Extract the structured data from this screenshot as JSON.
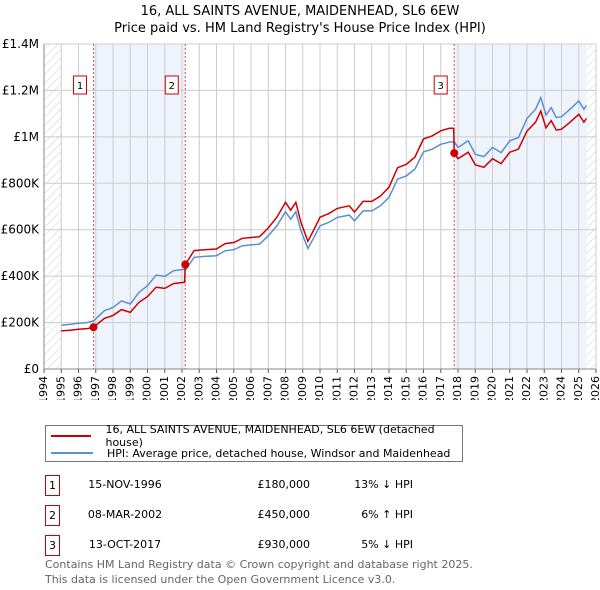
{
  "title": "16, ALL SAINTS AVENUE, MAIDENHEAD, SL6 6EW",
  "subtitle": "Price paid vs. HM Land Registry's House Price Index (HPI)",
  "chart_data": {
    "type": "line",
    "xlim": [
      1994,
      2026
    ],
    "ylim": [
      0,
      1400000
    ],
    "x_ticks": [
      1994,
      1995,
      1996,
      1997,
      1998,
      1999,
      2000,
      2001,
      2002,
      2003,
      2004,
      2005,
      2006,
      2007,
      2008,
      2009,
      2010,
      2011,
      2012,
      2013,
      2014,
      2015,
      2016,
      2017,
      2018,
      2019,
      2020,
      2021,
      2022,
      2023,
      2024,
      2025,
      2026
    ],
    "y_ticks": [
      {
        "v": 0,
        "label": "£0"
      },
      {
        "v": 200000,
        "label": "£200K"
      },
      {
        "v": 400000,
        "label": "£400K"
      },
      {
        "v": 600000,
        "label": "£600K"
      },
      {
        "v": 800000,
        "label": "£800K"
      },
      {
        "v": 1000000,
        "label": "£1M"
      },
      {
        "v": 1200000,
        "label": "£1.2M"
      },
      {
        "v": 1400000,
        "label": "£1.4M"
      }
    ],
    "grid": true,
    "colors": {
      "property": "#cc0000",
      "hpi": "#5b8fd0",
      "shade": "#eef3fc"
    },
    "data_range": [
      1995,
      2025.45
    ],
    "series": [
      {
        "name": "16, ALL SAINTS AVENUE, MAIDENHEAD, SL6 6EW (detached house)",
        "color": "#cc0000",
        "x": [
          1995.0,
          1995.5,
          1996.0,
          1996.5,
          1996.87,
          1997.5,
          1998.0,
          1998.5,
          1999.0,
          1999.5,
          2000.0,
          2000.5,
          2001.0,
          2001.5,
          2002.15,
          2002.19,
          2002.7,
          2003.3,
          2004.0,
          2004.5,
          2005.0,
          2005.5,
          2006.5,
          2007.0,
          2007.5,
          2008.0,
          2008.3,
          2008.6,
          2008.9,
          2009.3,
          2009.7,
          2010.0,
          2010.5,
          2011.0,
          2011.7,
          2012.0,
          2012.5,
          2013.0,
          2013.5,
          2014.0,
          2014.5,
          2015.0,
          2015.5,
          2016.0,
          2016.5,
          2017.0,
          2017.5,
          2017.75,
          2017.78,
          2018.0,
          2018.6,
          2019.0,
          2019.5,
          2020.0,
          2020.5,
          2021.0,
          2021.5,
          2022.0,
          2022.5,
          2022.8,
          2023.1,
          2023.4,
          2023.7,
          2024.0,
          2024.5,
          2025.0,
          2025.3,
          2025.45
        ],
        "y": [
          164000,
          167000,
          171000,
          174000,
          180000,
          218000,
          231000,
          256000,
          244000,
          287000,
          312000,
          352000,
          347000,
          368000,
          374000,
          450000,
          510000,
          514000,
          517000,
          540000,
          545000,
          563000,
          570000,
          608000,
          654000,
          718000,
          684000,
          718000,
          631000,
          550000,
          608000,
          654000,
          669000,
          692000,
          703000,
          676000,
          722000,
          722000,
          745000,
          783000,
          867000,
          882000,
          913000,
          991000,
          1004000,
          1026000,
          1037000,
          1037000,
          930000,
          906000,
          934000,
          879000,
          869000,
          906000,
          885000,
          934000,
          947000,
          1025000,
          1063000,
          1111000,
          1039000,
          1070000,
          1029000,
          1033000,
          1063000,
          1097000,
          1063000,
          1079000
        ]
      },
      {
        "name": "HPI: Average price, detached house, Windsor and Maidenhead",
        "color": "#5b8fd0",
        "x": [
          1995.0,
          1995.5,
          1996.0,
          1996.5,
          1996.87,
          1997.5,
          1998.0,
          1998.5,
          1999.0,
          1999.5,
          2000.0,
          2000.5,
          2001.0,
          2001.5,
          2002.15,
          2002.19,
          2002.7,
          2003.3,
          2004.0,
          2004.5,
          2005.0,
          2005.5,
          2006.5,
          2007.0,
          2007.5,
          2008.0,
          2008.3,
          2008.6,
          2008.9,
          2009.3,
          2009.7,
          2010.0,
          2010.5,
          2011.0,
          2011.7,
          2012.0,
          2012.5,
          2013.0,
          2013.5,
          2014.0,
          2014.5,
          2015.0,
          2015.5,
          2016.0,
          2016.5,
          2017.0,
          2017.5,
          2017.75,
          2017.78,
          2018.0,
          2018.6,
          2019.0,
          2019.5,
          2020.0,
          2020.5,
          2021.0,
          2021.5,
          2022.0,
          2022.5,
          2022.8,
          2023.1,
          2023.4,
          2023.7,
          2024.0,
          2024.5,
          2025.0,
          2025.3,
          2025.45
        ],
        "y": [
          189000,
          192000,
          197000,
          200000,
          207000,
          251000,
          265000,
          294000,
          280000,
          330000,
          359000,
          405000,
          399000,
          423000,
          430000,
          425000,
          481000,
          485000,
          488000,
          509000,
          514000,
          531000,
          538000,
          574000,
          617000,
          677000,
          645000,
          677000,
          595000,
          519000,
          574000,
          617000,
          631000,
          653000,
          663000,
          638000,
          681000,
          681000,
          703000,
          739000,
          818000,
          832000,
          861000,
          935000,
          947000,
          968000,
          978000,
          978000,
          979000,
          954000,
          983000,
          925000,
          915000,
          954000,
          932000,
          983000,
          997000,
          1079000,
          1119000,
          1169000,
          1094000,
          1126000,
          1083000,
          1087000,
          1119000,
          1155000,
          1119000,
          1136000
        ]
      }
    ],
    "sales": [
      {
        "label": "1",
        "x": 1996.87,
        "price": 180000
      },
      {
        "label": "2",
        "x": 2002.19,
        "price": 450000
      },
      {
        "label": "3",
        "x": 2017.78,
        "price": 930000
      }
    ],
    "legend": "below"
  },
  "legend": {
    "property": "16, ALL SAINTS AVENUE, MAIDENHEAD, SL6 6EW (detached house)",
    "hpi": "HPI: Average price, detached house, Windsor and Maidenhead"
  },
  "transactions": [
    {
      "num": "1",
      "date": "15-NOV-1996",
      "price": "£180,000",
      "hpi": "13% ↓ HPI"
    },
    {
      "num": "2",
      "date": "08-MAR-2002",
      "price": "£450,000",
      "hpi": "6% ↑ HPI"
    },
    {
      "num": "3",
      "date": "13-OCT-2017",
      "price": "£930,000",
      "hpi": "5% ↓ HPI"
    }
  ],
  "footer": {
    "line1": "Contains HM Land Registry data © Crown copyright and database right 2025.",
    "line2": "This data is licensed under the Open Government Licence v3.0."
  }
}
